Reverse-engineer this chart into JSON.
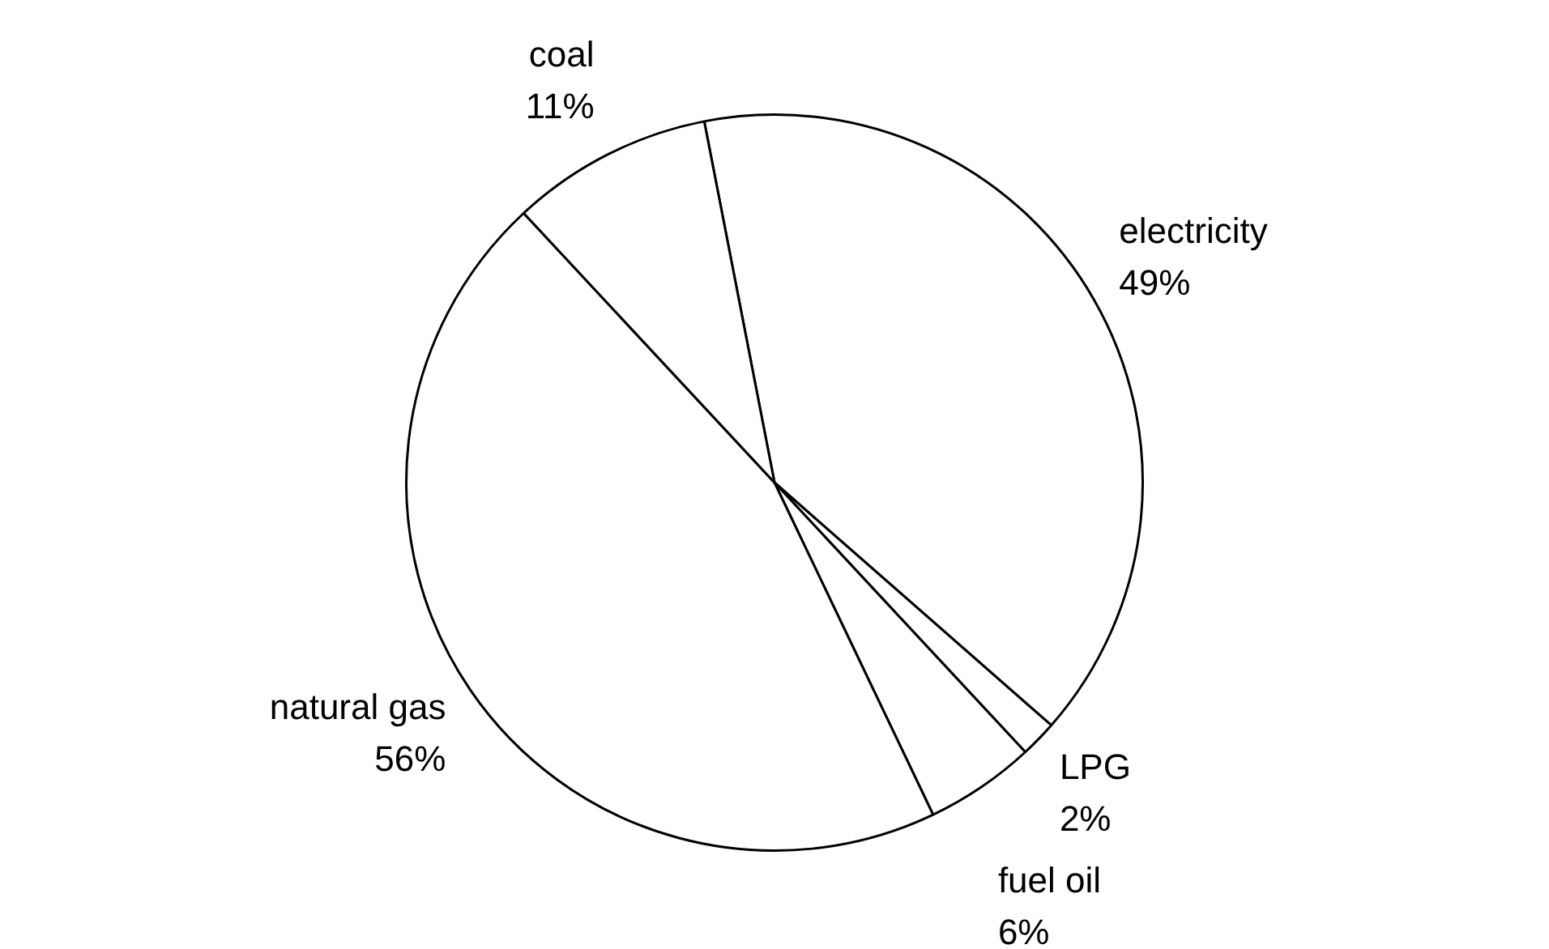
{
  "chart_data": {
    "type": "pie",
    "categories": [
      "electricity",
      "LPG",
      "fuel oil",
      "natural gas",
      "coal"
    ],
    "values": [
      49,
      2,
      6,
      56,
      11
    ],
    "value_labels": [
      "49%",
      "2%",
      "6%",
      "56%",
      "11%"
    ],
    "colors": [
      "#ffffff",
      "#ffffff",
      "#ffffff",
      "#ffffff",
      "#ffffff"
    ],
    "legend": false
  }
}
